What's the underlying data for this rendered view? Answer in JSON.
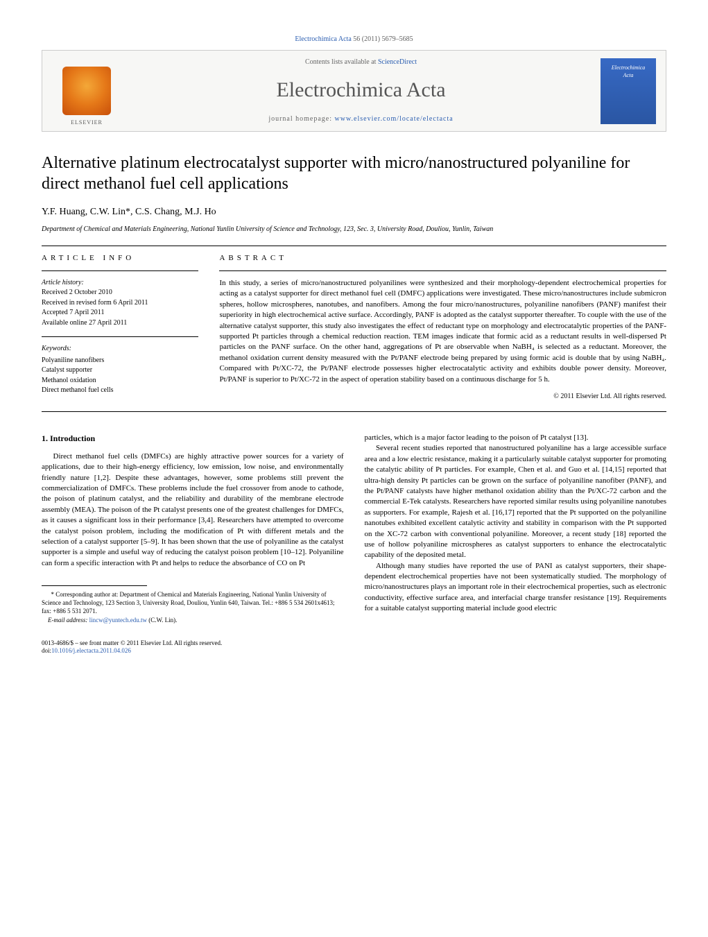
{
  "header": {
    "citation_prefix": "",
    "journal_link": "Electrochimica Acta",
    "citation_suffix": " 56 (2011) 5679–5685"
  },
  "banner": {
    "publisher_label": "ELSEVIER",
    "contents_prefix": "Contents lists available at ",
    "contents_link": "ScienceDirect",
    "journal_name": "Electrochimica Acta",
    "homepage_prefix": "journal homepage: ",
    "homepage_link": "www.elsevier.com/locate/electacta",
    "cover_line1": "Electrochimica",
    "cover_line2": "Acta"
  },
  "article": {
    "title": "Alternative platinum electrocatalyst supporter with micro/nanostructured polyaniline for direct methanol fuel cell applications",
    "authors": "Y.F. Huang, C.W. Lin*, C.S. Chang, M.J. Ho",
    "affiliation": "Department of Chemical and Materials Engineering, National Yunlin University of Science and Technology, 123, Sec. 3, University Road, Douliou, Yunlin, Taiwan"
  },
  "info": {
    "heading": "article info",
    "history_label": "Article history:",
    "received": "Received 2 October 2010",
    "revised": "Received in revised form 6 April 2011",
    "accepted": "Accepted 7 April 2011",
    "online": "Available online 27 April 2011",
    "keywords_label": "Keywords:",
    "kw1": "Polyaniline nanofibers",
    "kw2": "Catalyst supporter",
    "kw3": "Methanol oxidation",
    "kw4": "Direct methanol fuel cells"
  },
  "abstract": {
    "heading": "abstract",
    "text": "In this study, a series of micro/nanostructured polyanilines were synthesized and their morphology-dependent electrochemical properties for acting as a catalyst supporter for direct methanol fuel cell (DMFC) applications were investigated. These micro/nanostructures include submicron spheres, hollow microspheres, nanotubes, and nanofibers. Among the four micro/nanostructures, polyaniline nanofibers (PANF) manifest their superiority in high electrochemical active surface. Accordingly, PANF is adopted as the catalyst supporter thereafter. To couple with the use of the alternative catalyst supporter, this study also investigates the effect of reductant type on morphology and electrocatalytic properties of the PANF-supported Pt particles through a chemical reduction reaction. TEM images indicate that formic acid as a reductant results in well-dispersed Pt particles on the PANF surface. On the other hand, aggregations of Pt are observable when NaBH₄ is selected as a reductant. Moreover, the methanol oxidation current density measured with the Pt/PANF electrode being prepared by using formic acid is double that by using NaBH₄. Compared with Pt/XC-72, the Pt/PANF electrode possesses higher electrocatalytic activity and exhibits double power density. Moreover, Pt/PANF is superior to Pt/XC-72 in the aspect of operation stability based on a continuous discharge for 5 h.",
    "copyright": "© 2011 Elsevier Ltd. All rights reserved."
  },
  "body": {
    "section1_heading": "1. Introduction",
    "left_p1": "Direct methanol fuel cells (DMFCs) are highly attractive power sources for a variety of applications, due to their high-energy efficiency, low emission, low noise, and environmentally friendly nature [1,2]. Despite these advantages, however, some problems still prevent the commercialization of DMFCs. These problems include the fuel crossover from anode to cathode, the poison of platinum catalyst, and the reliability and durability of the membrane electrode assembly (MEA). The poison of the Pt catalyst presents one of the greatest challenges for DMFCs, as it causes a significant loss in their performance [3,4]. Researchers have attempted to overcome the catalyst poison problem, including the modification of Pt with different metals and the selection of a catalyst supporter [5–9]. It has been shown that the use of polyaniline as the catalyst supporter is a simple and useful way of reducing the catalyst poison problem [10–12]. Polyaniline can form a specific interaction with Pt and helps to reduce the absorbance of CO on Pt",
    "right_p1": "particles, which is a major factor leading to the poison of Pt catalyst [13].",
    "right_p2": "Several recent studies reported that nanostructured polyaniline has a large accessible surface area and a low electric resistance, making it a particularly suitable catalyst supporter for promoting the catalytic ability of Pt particles. For example, Chen et al. and Guo et al. [14,15] reported that ultra-high density Pt particles can be grown on the surface of polyaniline nanofiber (PANF), and the Pt/PANF catalysts have higher methanol oxidation ability than the Pt/XC-72 carbon and the commercial E-Tek catalysts. Researchers have reported similar results using polyaniline nanotubes as supporters. For example, Rajesh et al. [16,17] reported that the Pt supported on the polyaniline nanotubes exhibited excellent catalytic activity and stability in comparison with the Pt supported on the XC-72 carbon with conventional polyaniline. Moreover, a recent study [18] reported the use of hollow polyaniline microspheres as catalyst supporters to enhance the electrocatalytic capability of the deposited metal.",
    "right_p3": "Although many studies have reported the use of PANI as catalyst supporters, their shape-dependent electrochemical properties have not been systematically studied. The morphology of micro/nanostructures plays an important role in their electrochemical properties, such as electronic conductivity, effective surface area, and interfacial charge transfer resistance [19]. Requirements for a suitable catalyst supporting material include good electric"
  },
  "footnote": {
    "corr": "* Corresponding author at: Department of Chemical and Materials Engineering, National Yunlin University of Science and Technology, 123 Section 3, University Road, Douliou, Yunlin 640, Taiwan. Tel.: +886 5 534 2601x4613;",
    "fax": "fax: +886 5 531 2071.",
    "email_prefix": "E-mail address: ",
    "email_link": "lincw@yuntech.edu.tw",
    "email_suffix": " (C.W. Lin)."
  },
  "footer": {
    "issn": "0013-4686/$ – see front matter © 2011 Elsevier Ltd. All rights reserved.",
    "doi_prefix": "doi:",
    "doi_link": "10.1016/j.electacta.2011.04.026"
  },
  "colors": {
    "link": "#2a5db0",
    "banner_bg": "#f7f7f5",
    "banner_border": "#cccccc",
    "cover_bg_top": "#3769c4",
    "cover_bg_bottom": "#2a56a3",
    "elsevier_a": "#f4a838",
    "elsevier_b": "#e57818",
    "elsevier_c": "#c84f0a",
    "text": "#000000",
    "muted": "#666666"
  }
}
